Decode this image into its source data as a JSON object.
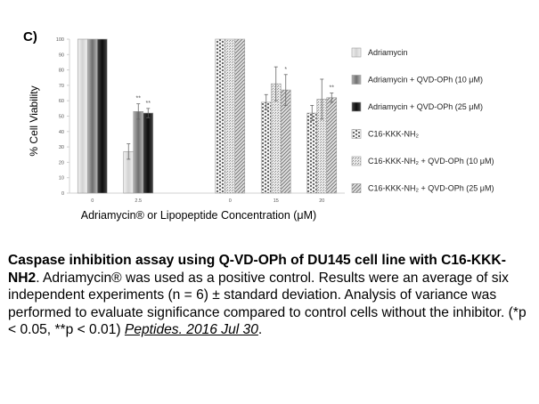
{
  "panel_label": "C)",
  "chart_data": {
    "type": "bar",
    "ylabel": "% Cell Viability",
    "xlabel": "Adriamycin® or Lipopeptide Concentration (μM)",
    "ylim": [
      0,
      100
    ],
    "yticks": [
      0,
      10,
      20,
      30,
      40,
      50,
      60,
      70,
      80,
      90,
      100
    ],
    "grid": false,
    "legend_position": "right",
    "groups": [
      {
        "label": "0",
        "bars": [
          {
            "series": 0,
            "value": 100,
            "error": 0,
            "sig": ""
          },
          {
            "series": 1,
            "value": 100,
            "error": 0,
            "sig": ""
          },
          {
            "series": 2,
            "value": 100,
            "error": 0,
            "sig": ""
          }
        ]
      },
      {
        "label": "2.5",
        "bars": [
          {
            "series": 0,
            "value": 27,
            "error": 5,
            "sig": ""
          },
          {
            "series": 1,
            "value": 53,
            "error": 5,
            "sig": "**"
          },
          {
            "series": 2,
            "value": 52,
            "error": 3,
            "sig": "**"
          }
        ]
      },
      {
        "label": "",
        "bars": []
      },
      {
        "label": "0",
        "bars": [
          {
            "series": 3,
            "value": 100,
            "error": 0,
            "sig": ""
          },
          {
            "series": 4,
            "value": 100,
            "error": 0,
            "sig": ""
          },
          {
            "series": 5,
            "value": 100,
            "error": 0,
            "sig": ""
          }
        ]
      },
      {
        "label": "15",
        "bars": [
          {
            "series": 3,
            "value": 59,
            "error": 5,
            "sig": ""
          },
          {
            "series": 4,
            "value": 71,
            "error": 11,
            "sig": ""
          },
          {
            "series": 5,
            "value": 67,
            "error": 10,
            "sig": "*"
          }
        ]
      },
      {
        "label": "20",
        "bars": [
          {
            "series": 3,
            "value": 52,
            "error": 5,
            "sig": ""
          },
          {
            "series": 4,
            "value": 61,
            "error": 13,
            "sig": ""
          },
          {
            "series": 5,
            "value": 62,
            "error": 3,
            "sig": "**"
          }
        ]
      }
    ],
    "series": [
      {
        "name": "Adriamycin",
        "pattern": "light",
        "color": "#dcdcdc"
      },
      {
        "name": "Adriamycin + QVD-OPh (10 μM)",
        "pattern": "mid",
        "color": "#8c8c8c"
      },
      {
        "name": "Adriamycin + QVD-OPh (25 μM)",
        "pattern": "dark",
        "color": "#1e1e1e"
      },
      {
        "name": "C16-KKK-NH₂",
        "pattern": "bricks",
        "color": "#777777"
      },
      {
        "name": "C16-KKK-NH₂ + QVD-OPh (10 μM)",
        "pattern": "dots",
        "color": "#9a9a9a"
      },
      {
        "name": "C16-KKK-NH₂ + QVD-OPh (25 μM)",
        "pattern": "diag",
        "color": "#8a8a8a"
      }
    ]
  },
  "caption": {
    "title": "Caspase inhibition assay using Q-VD-OPh of DU145 cell line with C16-KKK-NH2",
    "body": ". Adriamycin® was used as a positive control. Results were an average of six independent experiments (n = 6) ± standard deviation. Analysis of variance was performed to evaluate significance compared to control cells without the inhibitor. (*p < 0.05, **p < 0.01) ",
    "citation": "Peptides. 2016 Jul 30",
    "end": "."
  }
}
